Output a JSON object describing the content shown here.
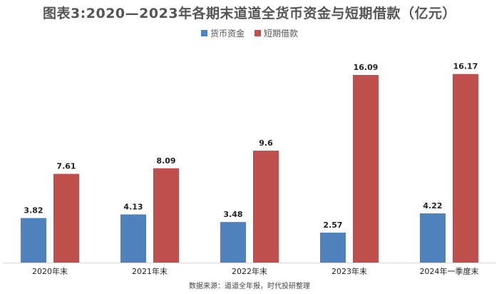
{
  "chart_data": {
    "type": "bar",
    "title": "图表3:2020—2023年各期末道道全货币资金与短期借款（亿元）",
    "categories": [
      "2020年末",
      "2021年末",
      "2022年末",
      "2023年末",
      "2024年一季度末"
    ],
    "series": [
      {
        "name": "货币资金",
        "color": "#4f81bd",
        "values": [
          3.82,
          4.13,
          3.48,
          2.57,
          4.22
        ],
        "labels": [
          "3.82",
          "4.13",
          "3.48",
          "2.57",
          "4.22"
        ]
      },
      {
        "name": "短期借款",
        "color": "#c0504d",
        "values": [
          7.61,
          8.09,
          9.6,
          16.09,
          16.17
        ],
        "labels": [
          "7.61",
          "8.09",
          "9.6",
          "16.09",
          "16.17"
        ]
      }
    ],
    "ylim": [
      0,
      17.5
    ],
    "grid": false,
    "legend_position": "top-center",
    "source": "数据来源：道道全年报，时代投研整理"
  }
}
